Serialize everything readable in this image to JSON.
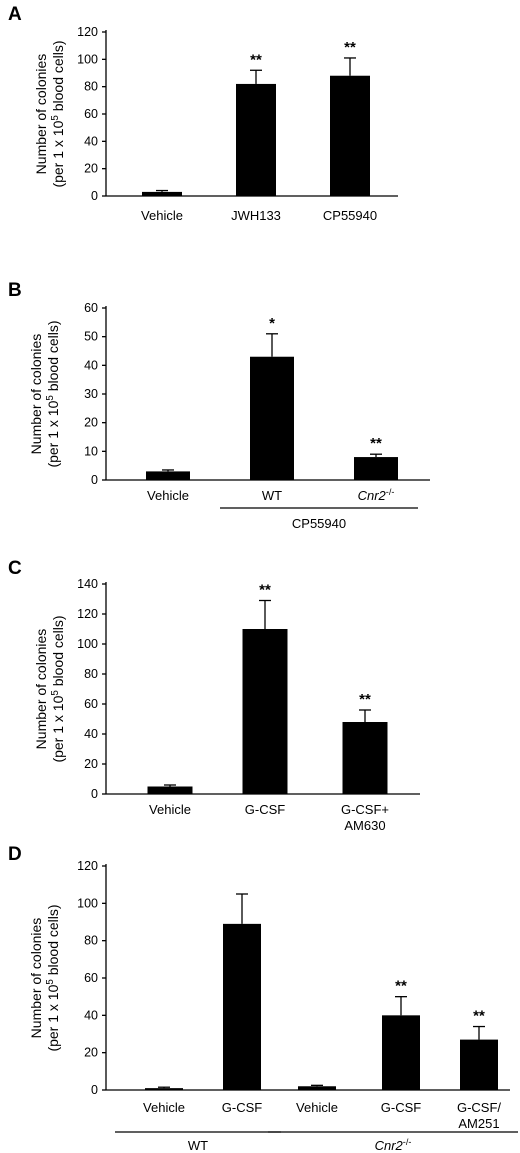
{
  "chart_data": [
    {
      "panel": "A",
      "type": "bar",
      "ylabel": [
        "Number of colonies",
        "(per 1 x 10^5 blood cells)"
      ],
      "ylim": [
        0,
        120
      ],
      "yticks": [
        0,
        20,
        40,
        60,
        80,
        100,
        120
      ],
      "categories": [
        "Vehicle",
        "JWH133",
        "CP55940"
      ],
      "values": [
        3,
        82,
        88
      ],
      "errors": [
        1,
        10,
        13
      ],
      "significance": [
        "",
        "**",
        "**"
      ],
      "groups": []
    },
    {
      "panel": "B",
      "type": "bar",
      "ylabel": [
        "Number of colonies",
        "(per 1 x 10^5 blood cells)"
      ],
      "ylim": [
        0,
        60
      ],
      "yticks": [
        0,
        10,
        20,
        30,
        40,
        50,
        60
      ],
      "categories": [
        "Vehicle",
        "WT",
        "Cnr2-/-"
      ],
      "values": [
        3,
        43,
        8
      ],
      "errors": [
        0.5,
        8,
        1
      ],
      "significance": [
        "",
        "*",
        "**"
      ],
      "groups": [
        {
          "label": "CP55940",
          "from": 1,
          "to": 2
        }
      ]
    },
    {
      "panel": "C",
      "type": "bar",
      "ylabel": [
        "Number of colonies",
        "(per 1 x 10^5 blood cells)"
      ],
      "ylim": [
        0,
        140
      ],
      "yticks": [
        0,
        20,
        40,
        60,
        80,
        100,
        120,
        140
      ],
      "categories": [
        "Vehicle",
        "G-CSF",
        "G-CSF+\nAM630"
      ],
      "values": [
        5,
        110,
        48
      ],
      "errors": [
        1,
        19,
        8
      ],
      "significance": [
        "",
        "**",
        "**"
      ],
      "groups": []
    },
    {
      "panel": "D",
      "type": "bar",
      "ylabel": [
        "Number of colonies",
        "(per 1 x 10^5 blood cells)"
      ],
      "ylim": [
        0,
        120
      ],
      "yticks": [
        0,
        20,
        40,
        60,
        80,
        100,
        120
      ],
      "categories": [
        "Vehicle",
        "G-CSF",
        "Vehicle",
        "G-CSF",
        "G-CSF/\nAM251"
      ],
      "values": [
        1,
        89,
        2,
        40,
        27
      ],
      "errors": [
        0.5,
        16,
        0.5,
        10,
        7
      ],
      "significance": [
        "",
        "",
        "",
        "**",
        "**"
      ],
      "groups": [
        {
          "label": "WT",
          "from": 0,
          "to": 1
        },
        {
          "label": "Cnr2-/-",
          "from": 2,
          "to": 4
        }
      ]
    }
  ]
}
